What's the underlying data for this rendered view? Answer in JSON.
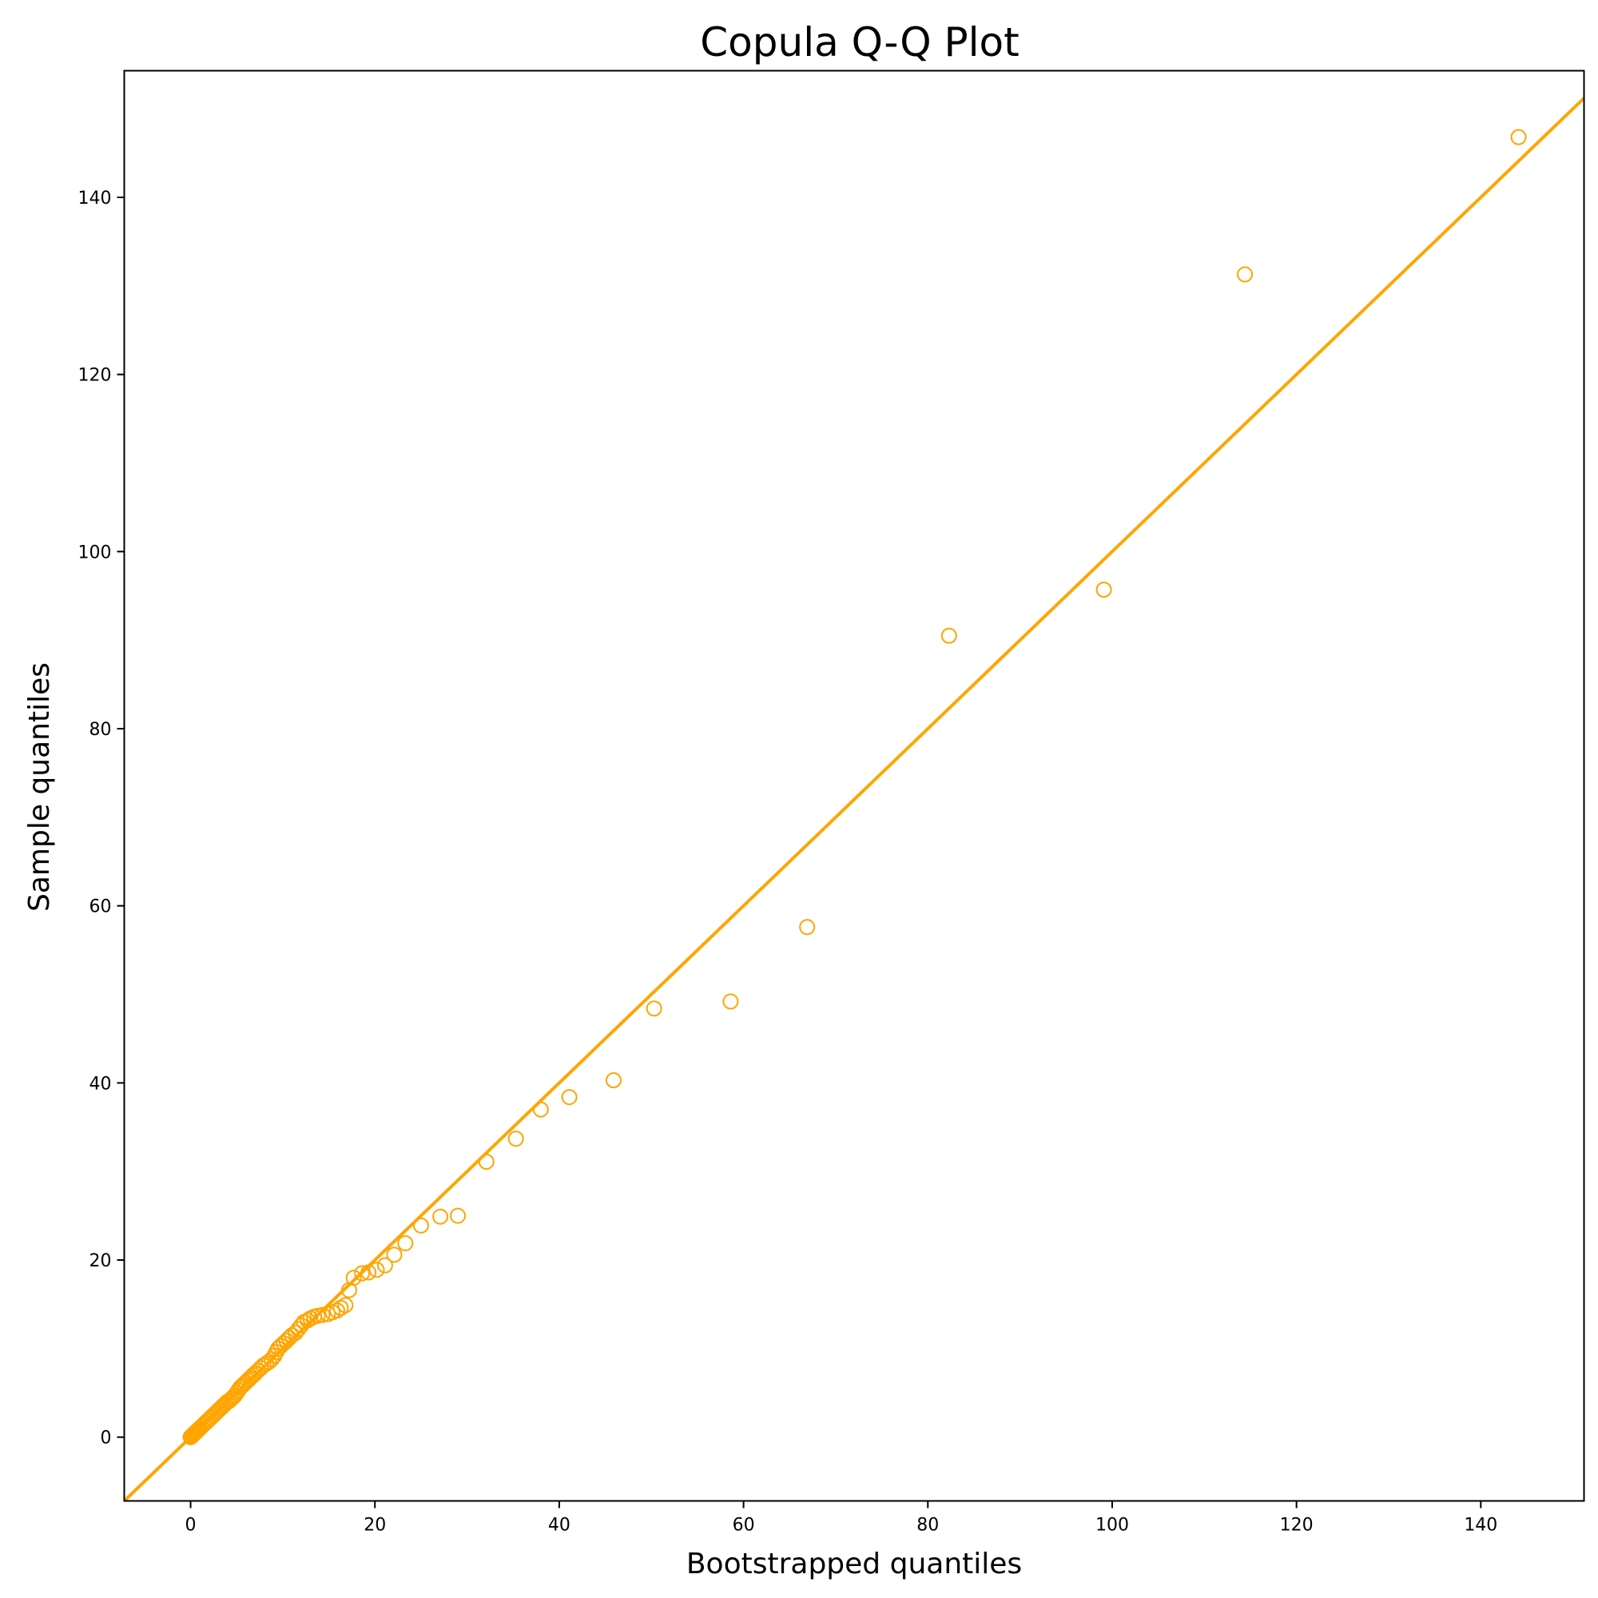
{
  "chart_data": {
    "type": "scatter",
    "title": "Copula Q-Q Plot",
    "xlabel": "Bootstrapped quantiles",
    "ylabel": "Sample quantiles",
    "xlim": [
      -7.2,
      151.2
    ],
    "ylim": [
      -7.2,
      154.3
    ],
    "xticks": [
      0,
      20,
      40,
      60,
      80,
      100,
      120,
      140
    ],
    "yticks": [
      0,
      20,
      40,
      60,
      80,
      100,
      120,
      140
    ],
    "grid": false,
    "reference_line": {
      "slope": 1,
      "intercept": 0,
      "color": "#ffa500"
    },
    "marker": {
      "shape": "open-circle",
      "color": "#ffa500"
    },
    "points": [
      [
        0.0,
        0.0
      ],
      [
        0.05,
        0.05
      ],
      [
        0.1,
        0.1
      ],
      [
        0.15,
        0.15
      ],
      [
        0.2,
        0.2
      ],
      [
        0.3,
        0.3
      ],
      [
        0.4,
        0.4
      ],
      [
        0.5,
        0.5
      ],
      [
        0.6,
        0.6
      ],
      [
        0.7,
        0.7
      ],
      [
        0.8,
        0.8
      ],
      [
        0.9,
        0.9
      ],
      [
        1.0,
        1.0
      ],
      [
        1.2,
        1.2
      ],
      [
        1.4,
        1.4
      ],
      [
        1.6,
        1.6
      ],
      [
        1.8,
        1.8
      ],
      [
        2.0,
        2.0
      ],
      [
        2.2,
        2.2
      ],
      [
        2.4,
        2.4
      ],
      [
        2.6,
        2.6
      ],
      [
        2.8,
        2.8
      ],
      [
        3.0,
        3.0
      ],
      [
        3.2,
        3.2
      ],
      [
        3.4,
        3.4
      ],
      [
        3.6,
        3.6
      ],
      [
        3.8,
        3.8
      ],
      [
        4.0,
        4.0
      ],
      [
        4.2,
        4.1
      ],
      [
        4.4,
        4.3
      ],
      [
        4.6,
        4.5
      ],
      [
        4.8,
        4.7
      ],
      [
        5.0,
        5.0
      ],
      [
        5.2,
        5.3
      ],
      [
        5.4,
        5.6
      ],
      [
        5.6,
        5.8
      ],
      [
        5.8,
        6.0
      ],
      [
        6.0,
        6.2
      ],
      [
        6.2,
        6.4
      ],
      [
        6.4,
        6.6
      ],
      [
        6.6,
        6.8
      ],
      [
        6.8,
        7.0
      ],
      [
        7.0,
        7.2
      ],
      [
        7.3,
        7.5
      ],
      [
        7.6,
        7.8
      ],
      [
        7.9,
        8.1
      ],
      [
        8.2,
        8.3
      ],
      [
        8.5,
        8.5
      ],
      [
        8.8,
        8.8
      ],
      [
        9.1,
        9.2
      ],
      [
        9.3,
        9.6
      ],
      [
        9.5,
        10.0
      ],
      [
        9.8,
        10.3
      ],
      [
        10.1,
        10.6
      ],
      [
        10.4,
        10.9
      ],
      [
        10.7,
        11.2
      ],
      [
        11.0,
        11.5
      ],
      [
        11.4,
        11.8
      ],
      [
        11.7,
        12.2
      ],
      [
        12.0,
        12.6
      ],
      [
        12.3,
        13.0
      ],
      [
        12.7,
        13.2
      ],
      [
        13.0,
        13.4
      ],
      [
        13.4,
        13.6
      ],
      [
        13.8,
        13.7
      ],
      [
        14.3,
        13.8
      ],
      [
        14.9,
        13.9
      ],
      [
        15.4,
        14.1
      ],
      [
        15.9,
        14.3
      ],
      [
        16.3,
        14.6
      ],
      [
        16.8,
        14.9
      ],
      [
        17.2,
        16.6
      ],
      [
        17.7,
        18.0
      ],
      [
        18.6,
        18.5
      ],
      [
        19.3,
        18.6
      ],
      [
        20.2,
        18.9
      ],
      [
        21.1,
        19.4
      ],
      [
        22.1,
        20.6
      ],
      [
        23.3,
        21.9
      ],
      [
        25.0,
        23.9
      ],
      [
        27.1,
        24.9
      ],
      [
        29.0,
        25.0
      ],
      [
        32.1,
        31.1
      ],
      [
        35.3,
        33.7
      ],
      [
        38.0,
        37.0
      ],
      [
        41.1,
        38.4
      ],
      [
        45.9,
        40.3
      ],
      [
        50.3,
        48.4
      ],
      [
        58.6,
        49.2
      ],
      [
        66.9,
        57.6
      ],
      [
        82.3,
        90.5
      ],
      [
        99.1,
        95.7
      ],
      [
        114.4,
        131.3
      ],
      [
        144.1,
        146.8
      ]
    ]
  }
}
